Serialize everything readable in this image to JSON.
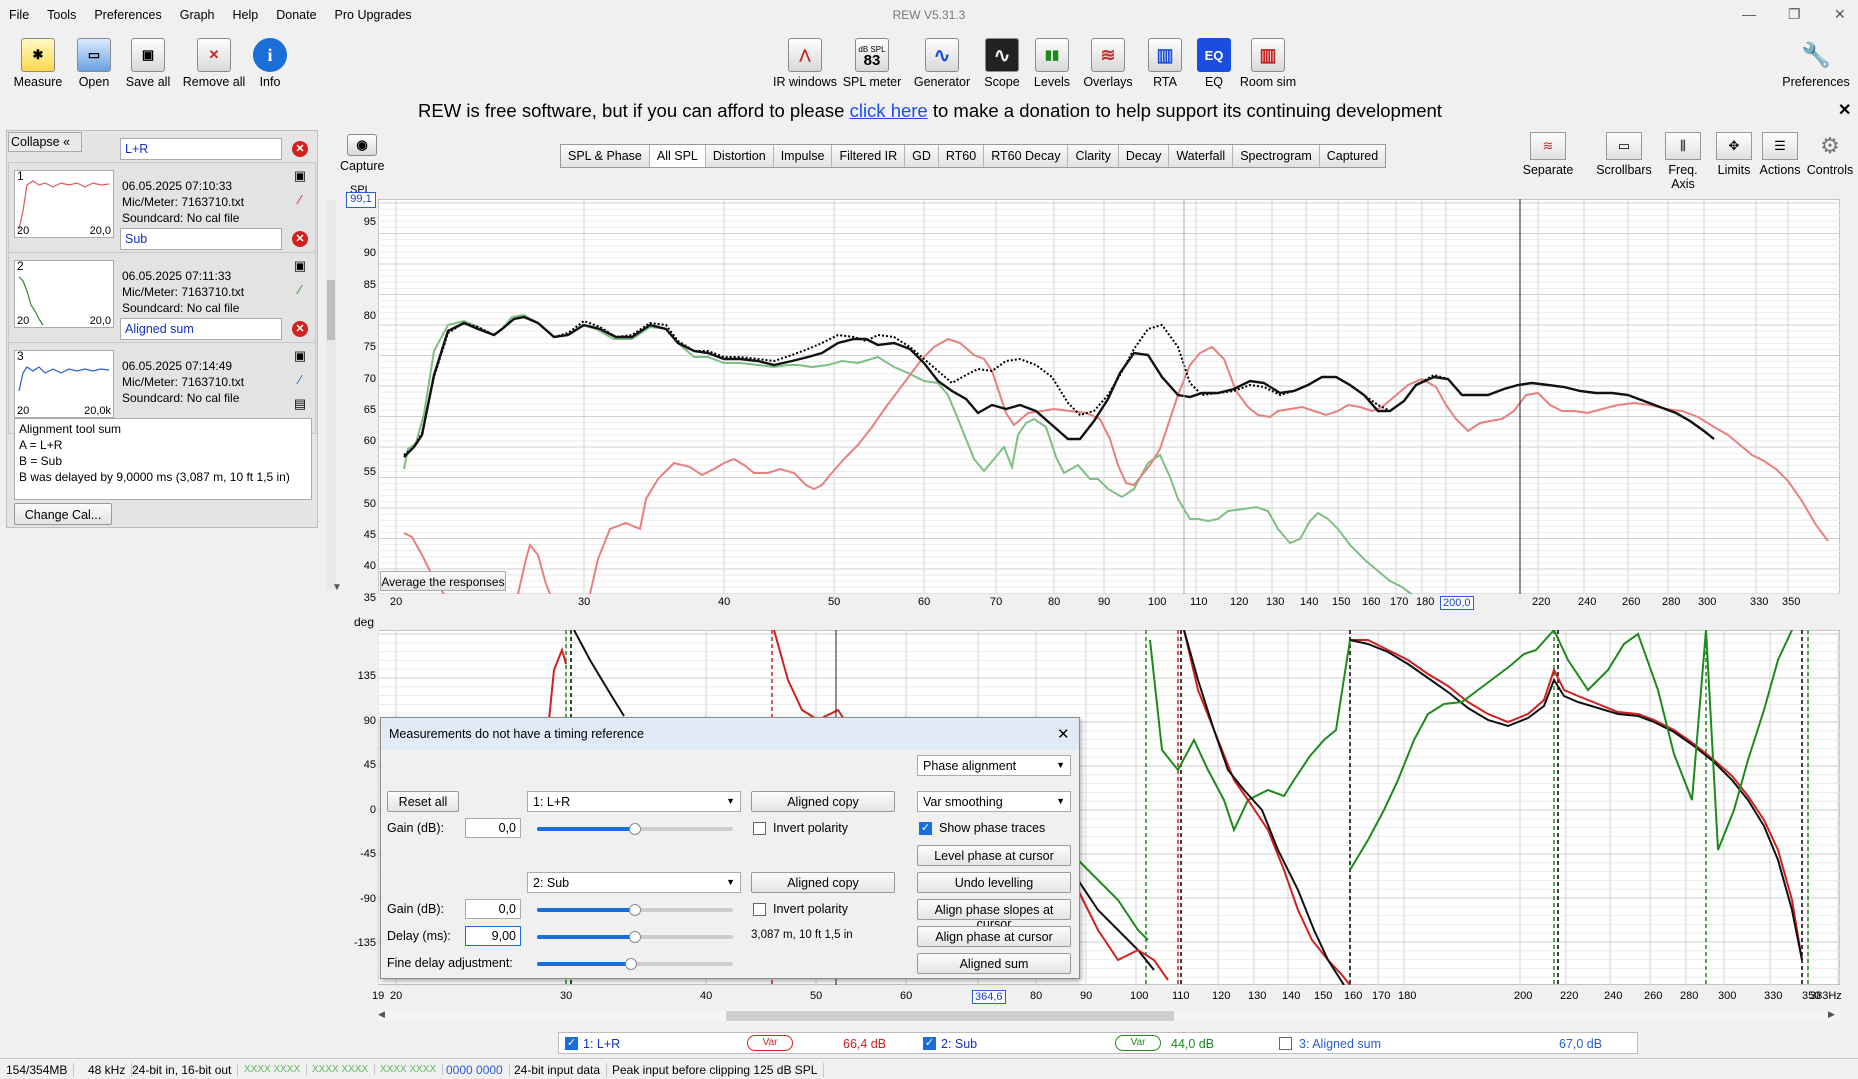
{
  "menu": [
    "File",
    "Tools",
    "Preferences",
    "Graph",
    "Help",
    "Donate",
    "Pro Upgrades"
  ],
  "app_title": "REW V5.31.3",
  "toolbar_left": [
    {
      "label": "Measure",
      "icon": "measure-icon",
      "glyph": "✱"
    },
    {
      "label": "Open",
      "icon": "folder-open-icon",
      "glyph": "▭"
    },
    {
      "label": "Save all",
      "icon": "save-all-icon",
      "glyph": "▣"
    },
    {
      "label": "Remove all",
      "icon": "remove-all-icon",
      "glyph": "✕"
    },
    {
      "label": "Info",
      "icon": "info-icon",
      "glyph": "i"
    }
  ],
  "toolbar_center": [
    {
      "label": "IR windows",
      "icon": "ir-windows-icon",
      "glyph": "⋀"
    },
    {
      "label": "SPL meter",
      "icon": "spl-meter-icon",
      "glyph": "83",
      "sub": "dB SPL"
    },
    {
      "label": "Generator",
      "icon": "generator-icon",
      "glyph": "∿"
    },
    {
      "label": "Scope",
      "icon": "scope-icon",
      "glyph": "∿"
    },
    {
      "label": "Levels",
      "icon": "levels-icon",
      "glyph": "▮▮"
    },
    {
      "label": "Overlays",
      "icon": "overlays-icon",
      "glyph": "≋"
    },
    {
      "label": "RTA",
      "icon": "rta-icon",
      "glyph": "▥"
    },
    {
      "label": "EQ",
      "icon": "eq-icon",
      "glyph": "EQ"
    },
    {
      "label": "Room sim",
      "icon": "room-sim-icon",
      "glyph": "▥"
    }
  ],
  "toolbar_right": {
    "label": "Preferences",
    "icon": "wrench-icon",
    "glyph": "🔧"
  },
  "banner": {
    "prefix": "REW is free software, but if you can afford to please ",
    "link": "click here",
    "suffix": " to make a donation to help support its continuing development"
  },
  "left_panel": {
    "collapse_label": "Collapse",
    "measurements": [
      {
        "num": "1",
        "name": "L+R",
        "date": "06.05.2025 07:10:33",
        "mic": "Mic/Meter: 7163710.txt",
        "soundcard": "Soundcard: No cal file",
        "thumb_left": "20",
        "thumb_right": "20,0",
        "color": "#e05a5a"
      },
      {
        "num": "2",
        "name": "Sub",
        "date": "06.05.2025 07:11:33",
        "mic": "Mic/Meter: 7163710.txt",
        "soundcard": "Soundcard: No cal file",
        "thumb_left": "20",
        "thumb_right": "20,0",
        "color": "#2c8a2c"
      },
      {
        "num": "3",
        "name": "Aligned sum",
        "date": "06.05.2025 07:14:49",
        "mic": "Mic/Meter: 7163710.txt",
        "soundcard": "Soundcard: No cal file",
        "thumb_left": "20",
        "thumb_right": "20,0k",
        "color": "#2a5ed0"
      }
    ],
    "notes": [
      "Alignment tool sum",
      "A = L+R",
      "B = Sub",
      "B was delayed by 9,0000 ms (3,087 m, 10 ft 1,5 in)"
    ],
    "change_cal_label": "Change Cal..."
  },
  "capture_label": "Capture",
  "tabs": [
    "SPL & Phase",
    "All SPL",
    "Distortion",
    "Impulse",
    "Filtered IR",
    "GD",
    "RT60",
    "RT60 Decay",
    "Clarity",
    "Decay",
    "Waterfall",
    "Spectrogram",
    "Captured"
  ],
  "active_tab": "All SPL",
  "right_tools": [
    {
      "label": "Separate",
      "icon": "separate-icon",
      "glyph": "≋"
    },
    {
      "label": "Scrollbars",
      "icon": "scrollbars-icon",
      "glyph": "▭"
    },
    {
      "label": "Freq. Axis",
      "icon": "freq-axis-icon",
      "glyph": "⫼"
    },
    {
      "label": "Limits",
      "icon": "limits-icon",
      "glyph": "✥"
    },
    {
      "label": "Actions",
      "icon": "actions-icon",
      "glyph": "☰"
    },
    {
      "label": "Controls",
      "icon": "controls-gear-icon",
      "glyph": "⚙"
    }
  ],
  "spl_graph": {
    "ylabel": "SPL",
    "y_ticks": [
      "95",
      "90",
      "85",
      "80",
      "75",
      "70",
      "65",
      "60",
      "55",
      "50",
      "45",
      "40",
      "35"
    ],
    "y_top_readout": "99,1",
    "x_ticks": [
      "20",
      "30",
      "40",
      "50",
      "60",
      "70",
      "80",
      "90",
      "100",
      "110",
      "120",
      "130",
      "140",
      "150",
      "160",
      "170",
      "180",
      "200,0",
      "220",
      "240",
      "260",
      "280",
      "300",
      "330",
      "350"
    ],
    "cursor_readout": "200,0",
    "average_button": "Average the responses"
  },
  "phase_graph": {
    "ylabel": "deg",
    "y_ticks": [
      "135",
      "90",
      "45",
      "0",
      "-45",
      "-90",
      "-135"
    ],
    "x_ticks": [
      "19",
      "20",
      "30",
      "40",
      "50",
      "60",
      "364,6",
      "80",
      "90",
      "100",
      "110",
      "120",
      "130",
      "140",
      "150",
      "160",
      "170",
      "180",
      "200",
      "220",
      "240",
      "260",
      "280",
      "300",
      "330",
      "350",
      "383Hz"
    ],
    "cursor_readout": "364,6"
  },
  "dialog": {
    "title": "Measurements do not have a timing reference",
    "reset_all": "Reset all",
    "meas_a": "1: L+R",
    "meas_b": "2: Sub",
    "aligned_copy": "Aligned copy",
    "phase_mode": "Phase alignment",
    "smoothing": "Var smoothing",
    "gain_label": "Gain (dB):",
    "gain_a": "0,0",
    "gain_b": "0,0",
    "delay_label": "Delay (ms):",
    "delay_value": "9,00",
    "delay_distance": "3,087 m, 10 ft 1,5 in",
    "fine_delay_label": "Fine delay adjustment:",
    "invert_polarity": "Invert polarity",
    "show_phase_traces": "Show phase traces",
    "level_phase": "Level phase at cursor",
    "undo_levelling": "Undo levelling",
    "align_slopes": "Align phase slopes at cursor",
    "align_phase": "Align phase at cursor",
    "aligned_sum": "Aligned sum",
    "slider_gain_a": 0.5,
    "slider_gain_b": 0.5,
    "slider_delay": 0.5,
    "slider_fine": 0.48
  },
  "legend": [
    {
      "label": "1: L+R",
      "smoothing": "Var",
      "value": "66,4 dB",
      "checked": true,
      "color": "#e02020"
    },
    {
      "label": "2: Sub",
      "smoothing": "Var",
      "value": "44,0 dB",
      "checked": true,
      "color": "#1e8a1e"
    },
    {
      "label": "3: Aligned sum",
      "smoothing": "",
      "value": "67,0 dB",
      "checked": false,
      "color": "#2a5ed0"
    }
  ],
  "status": [
    "154/354MB",
    "48 kHz",
    "24-bit in, 16-bit out",
    "XXXX XXXX",
    "XXXX XXXX",
    "XXXX XXXX",
    "0000 0000",
    "24-bit input data",
    "Peak input before clipping 125 dB SPL"
  ]
}
